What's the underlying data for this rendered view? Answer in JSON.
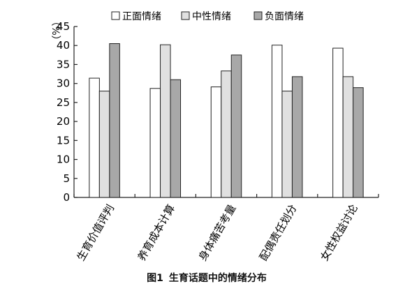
{
  "caption": {
    "figure_number": "图1",
    "title": "生育话题中的情绪分布"
  },
  "chart_data": {
    "type": "bar",
    "ylabel": "（%）",
    "ylim": [
      0,
      45
    ],
    "yticks": [
      0,
      5,
      10,
      15,
      20,
      25,
      30,
      35,
      40,
      45
    ],
    "grid": false,
    "legend_position": "top",
    "categories": [
      "生育价值评判",
      "养育成本计算",
      "身体痛苦考量",
      "配偶责任划分",
      "女性权益讨论"
    ],
    "series": [
      {
        "name": "正面情绪",
        "color": "#ffffff",
        "values": [
          31.4,
          28.7,
          29.1,
          40.1,
          39.3
        ]
      },
      {
        "name": "中性情绪",
        "color": "#e0e0e0",
        "values": [
          28.0,
          40.2,
          33.3,
          28.0,
          31.8
        ]
      },
      {
        "name": "负面情绪",
        "color": "#a8a8a8",
        "values": [
          40.5,
          31.0,
          37.5,
          31.8,
          28.9
        ]
      }
    ]
  }
}
